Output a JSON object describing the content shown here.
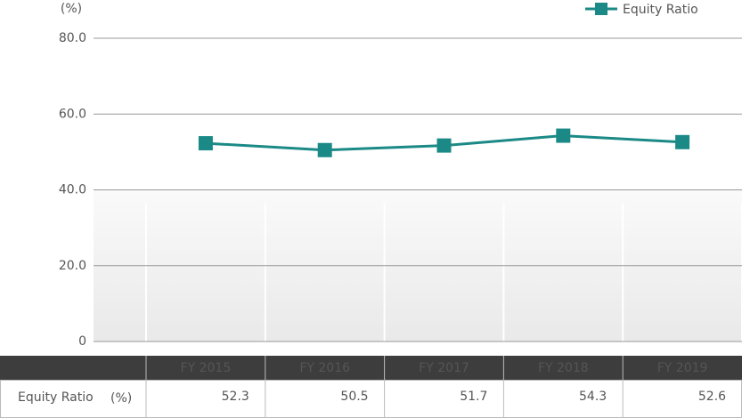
{
  "chart_data": {
    "type": "line",
    "unit_label": "(%)",
    "categories": [
      "FY 2015",
      "FY 2016",
      "FY 2017",
      "FY 2018",
      "FY 2019"
    ],
    "series": [
      {
        "name": "Equity Ratio",
        "color": "#1b8a87",
        "values": [
          52.3,
          50.5,
          51.7,
          54.3,
          52.6
        ]
      }
    ],
    "ylim": [
      0,
      80
    ],
    "yticks": [
      0,
      {
        "value": 20,
        "label": "20.0"
      },
      {
        "value": 40,
        "label": "40.0"
      },
      {
        "value": 60,
        "label": "60.0"
      },
      {
        "value": 80,
        "label": "80.0"
      }
    ],
    "grid": true,
    "legend": "top-right"
  }
}
